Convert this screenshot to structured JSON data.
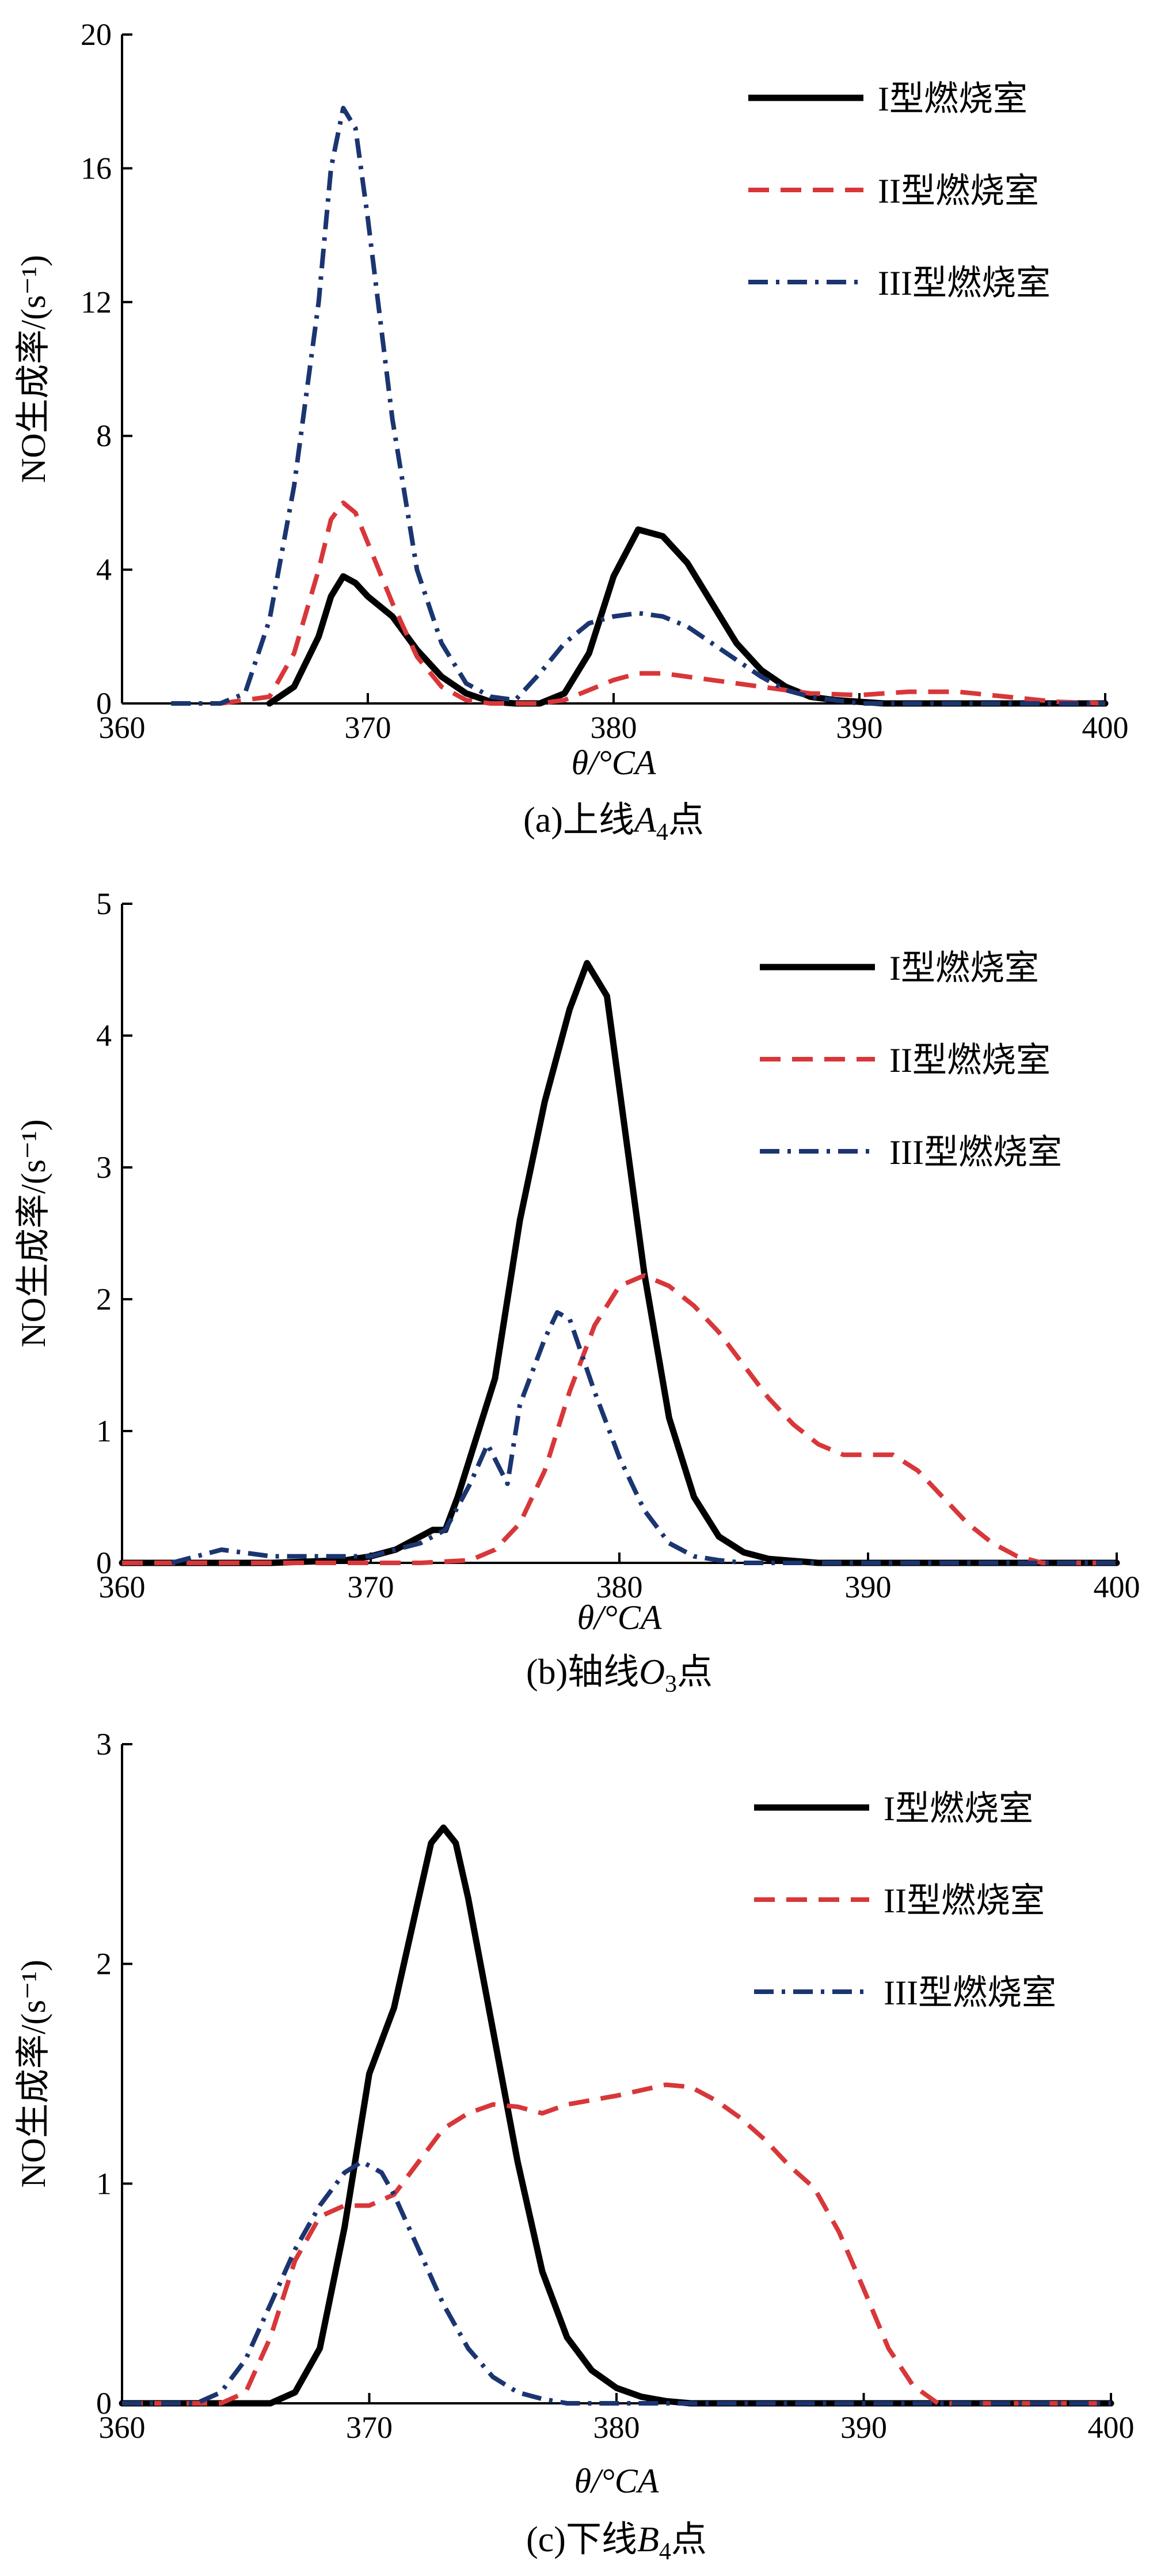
{
  "figure_captions": [
    {
      "prefix": "(a)上线",
      "sym": "A",
      "sub": "4",
      "suffix": "点"
    },
    {
      "prefix": "(b)轴线",
      "sym": "O",
      "sub": "3",
      "suffix": "点"
    },
    {
      "prefix": "(c)下线",
      "sym": "B",
      "sub": "4",
      "suffix": "点"
    }
  ],
  "legend_names": [
    "I型燃烧室",
    "II型燃烧室",
    "III型燃烧室"
  ],
  "colors": {
    "series_I": "#000000",
    "series_II": "#d8373a",
    "series_III": "#1a3570"
  },
  "chart_data": [
    {
      "type": "line",
      "xlabel": "θ/°CA",
      "ylabel": "NO生成率/(s⁻¹)",
      "xlim": [
        360,
        400
      ],
      "ylim": [
        0,
        20
      ],
      "xticks": [
        360,
        370,
        380,
        390,
        400
      ],
      "yticks": [
        0,
        4,
        8,
        12,
        16,
        20
      ],
      "legend_position": "top-right",
      "series": [
        {
          "name": "I型燃烧室",
          "style": "solid",
          "x": [
            366,
            367,
            368,
            368.5,
            369,
            369.5,
            370,
            371,
            372,
            373,
            374,
            375,
            376,
            377,
            378,
            379,
            380,
            381,
            382,
            383,
            384,
            385,
            386,
            387,
            388,
            389,
            390,
            391,
            392,
            400
          ],
          "y": [
            0,
            0.5,
            2,
            3.2,
            3.8,
            3.6,
            3.2,
            2.6,
            1.6,
            0.8,
            0.3,
            0.05,
            0,
            0,
            0.3,
            1.5,
            3.8,
            5.2,
            5.0,
            4.2,
            3.0,
            1.8,
            1.0,
            0.5,
            0.2,
            0.1,
            0.05,
            0,
            0,
            0
          ]
        },
        {
          "name": "II型燃烧室",
          "style": "dashed",
          "x": [
            364,
            366,
            367,
            368,
            368.5,
            369,
            369.5,
            370,
            371,
            372,
            373,
            374,
            375,
            376,
            377,
            378,
            379,
            380,
            381,
            382,
            383,
            384,
            385,
            386,
            388,
            390,
            392,
            394,
            396,
            398,
            400
          ],
          "y": [
            0,
            0.2,
            1.5,
            4.0,
            5.5,
            6.0,
            5.7,
            4.8,
            3.0,
            1.4,
            0.5,
            0.1,
            0,
            0,
            0,
            0.1,
            0.4,
            0.7,
            0.9,
            0.9,
            0.8,
            0.7,
            0.6,
            0.5,
            0.3,
            0.25,
            0.35,
            0.35,
            0.2,
            0.05,
            0
          ]
        },
        {
          "name": "III型燃烧室",
          "style": "dashdot",
          "x": [
            362,
            364,
            365,
            366,
            367,
            368,
            368.5,
            369,
            369.5,
            370,
            371,
            372,
            373,
            374,
            375,
            376,
            377,
            378,
            379,
            380,
            381,
            382,
            383,
            384,
            385,
            386,
            387,
            388,
            389,
            390,
            392,
            400
          ],
          "y": [
            0,
            0,
            0.3,
            2.5,
            6.5,
            12,
            16,
            17.8,
            17.2,
            14.5,
            8.5,
            4.0,
            1.8,
            0.6,
            0.2,
            0.1,
            0.9,
            1.8,
            2.4,
            2.6,
            2.7,
            2.6,
            2.3,
            1.8,
            1.3,
            0.8,
            0.4,
            0.2,
            0.1,
            0,
            0,
            0
          ]
        }
      ]
    },
    {
      "type": "line",
      "xlabel": "θ/°CA",
      "ylabel": "NO生成率/(s⁻¹)",
      "xlim": [
        360,
        400
      ],
      "ylim": [
        0,
        5
      ],
      "xticks": [
        360,
        370,
        380,
        390,
        400
      ],
      "yticks": [
        0,
        1,
        2,
        3,
        4,
        5
      ],
      "legend_position": "top-right",
      "series": [
        {
          "name": "I型燃烧室",
          "style": "solid",
          "x": [
            360,
            366,
            369,
            370,
            371,
            372,
            372.5,
            373,
            373.5,
            374,
            375,
            376,
            377,
            378,
            378.7,
            379.5,
            380,
            381,
            382,
            383,
            384,
            385,
            386,
            388,
            390,
            400
          ],
          "y": [
            0,
            0,
            0.02,
            0.05,
            0.1,
            0.2,
            0.25,
            0.25,
            0.5,
            0.8,
            1.4,
            2.6,
            3.5,
            4.2,
            4.55,
            4.3,
            3.6,
            2.2,
            1.1,
            0.5,
            0.2,
            0.08,
            0.03,
            0,
            0,
            0
          ]
        },
        {
          "name": "II型燃烧室",
          "style": "dashed",
          "x": [
            360,
            372,
            374,
            375,
            376,
            377,
            378,
            379,
            380,
            381,
            382,
            383,
            384,
            385,
            386,
            387,
            388,
            389,
            390,
            391,
            392,
            393,
            394,
            395,
            396,
            397,
            400
          ],
          "y": [
            0,
            0,
            0.02,
            0.1,
            0.3,
            0.7,
            1.3,
            1.8,
            2.1,
            2.18,
            2.1,
            1.95,
            1.75,
            1.5,
            1.25,
            1.05,
            0.9,
            0.82,
            0.82,
            0.82,
            0.7,
            0.5,
            0.3,
            0.15,
            0.05,
            0,
            0
          ]
        },
        {
          "name": "III型燃烧室",
          "style": "dashdot",
          "x": [
            362,
            364,
            366,
            368,
            370,
            371,
            372,
            373,
            374,
            374.7,
            375.5,
            376,
            377,
            377.5,
            378,
            379,
            380,
            381,
            382,
            383,
            384,
            385,
            386,
            388,
            400
          ],
          "y": [
            0,
            0.1,
            0.05,
            0.05,
            0.05,
            0.1,
            0.15,
            0.25,
            0.6,
            0.9,
            0.6,
            1.2,
            1.7,
            1.9,
            1.85,
            1.3,
            0.8,
            0.4,
            0.15,
            0.05,
            0.02,
            0,
            0,
            0,
            0
          ]
        }
      ]
    },
    {
      "type": "line",
      "xlabel": "θ/°CA",
      "ylabel": "NO生成率/(s⁻¹)",
      "xlim": [
        360,
        400
      ],
      "ylim": [
        0,
        3
      ],
      "xticks": [
        360,
        370,
        380,
        390,
        400
      ],
      "yticks": [
        0,
        1,
        2,
        3
      ],
      "legend_position": "top-right",
      "series": [
        {
          "name": "I型燃烧室",
          "style": "solid",
          "x": [
            360,
            366,
            367,
            368,
            369,
            370,
            371,
            372,
            372.5,
            373,
            373.5,
            374,
            375,
            376,
            377,
            378,
            379,
            380,
            381,
            382,
            383,
            385,
            400
          ],
          "y": [
            0,
            0,
            0.05,
            0.25,
            0.8,
            1.5,
            1.8,
            2.3,
            2.55,
            2.62,
            2.55,
            2.3,
            1.7,
            1.1,
            0.6,
            0.3,
            0.15,
            0.07,
            0.03,
            0.01,
            0,
            0,
            0
          ]
        },
        {
          "name": "II型燃烧室",
          "style": "dashed",
          "x": [
            360,
            364,
            365,
            366,
            367,
            368,
            369,
            370,
            371,
            372,
            373,
            374,
            375,
            376,
            377,
            378,
            380,
            382,
            383,
            384,
            385,
            386,
            387,
            388,
            389,
            390,
            391,
            392,
            393,
            400
          ],
          "y": [
            0,
            0,
            0.05,
            0.3,
            0.65,
            0.85,
            0.9,
            0.9,
            0.95,
            1.1,
            1.25,
            1.32,
            1.36,
            1.35,
            1.32,
            1.36,
            1.4,
            1.45,
            1.44,
            1.38,
            1.3,
            1.2,
            1.08,
            0.98,
            0.78,
            0.52,
            0.25,
            0.08,
            0,
            0
          ]
        },
        {
          "name": "III型燃烧室",
          "style": "dashdot",
          "x": [
            360,
            363,
            364,
            365,
            366,
            367,
            368,
            369,
            369.7,
            370.5,
            371,
            372,
            373,
            374,
            375,
            376,
            377,
            378,
            379,
            380,
            400
          ],
          "y": [
            0,
            0,
            0.05,
            0.2,
            0.45,
            0.7,
            0.9,
            1.05,
            1.1,
            1.05,
            0.95,
            0.7,
            0.45,
            0.25,
            0.12,
            0.05,
            0.02,
            0,
            0,
            0,
            0
          ]
        }
      ]
    }
  ]
}
